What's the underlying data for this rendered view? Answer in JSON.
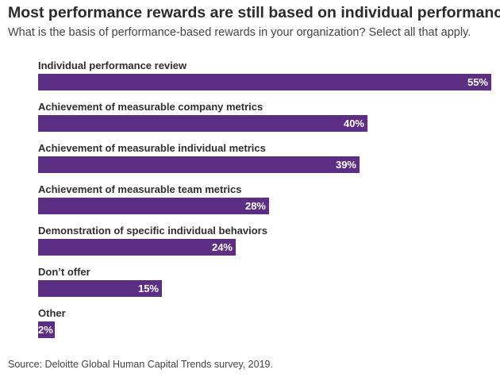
{
  "chart_data": {
    "type": "bar",
    "orientation": "horizontal",
    "title": "Most performance rewards are still based on individual performance",
    "subtitle": "What is the basis of performance-based rewards in your organization? Select all that apply.",
    "categories": [
      "Individual performance review",
      "Achievement of measurable company metrics",
      "Achievement of measurable individual metrics",
      "Achievement of measurable team metrics",
      "Demonstration of specific individual behaviors",
      "Don’t offer",
      "Other"
    ],
    "values": [
      55,
      40,
      39,
      28,
      24,
      15,
      2
    ],
    "value_labels": [
      "55%",
      "40%",
      "39%",
      "28%",
      "24%",
      "15%",
      "2%"
    ],
    "xlim": [
      0,
      55
    ],
    "grid": false,
    "legend": "none",
    "bar_color": "#5c2e84",
    "source": "Source: Deloitte Global Human Capital Trends survey, 2019."
  }
}
